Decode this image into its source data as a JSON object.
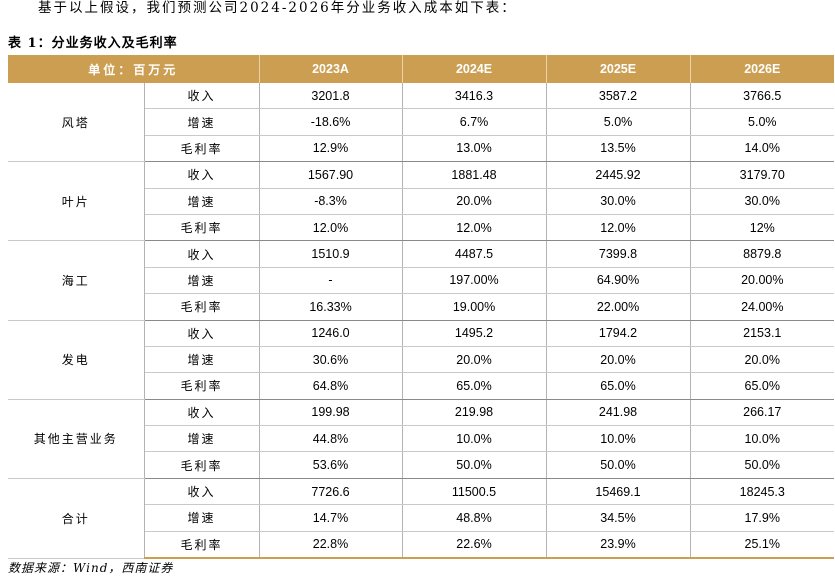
{
  "intro_text": "基于以上假设，我们预测公司2024-2026年分业务收入成本如下表：",
  "table_title": "表 1：分业务收入及毛利率",
  "header": {
    "unit_label": "单位：百万元",
    "years": [
      "2023A",
      "2024E",
      "2025E",
      "2026E"
    ]
  },
  "segments": [
    {
      "name": "风塔",
      "rows": [
        {
          "metric": "收入",
          "values": [
            "3201.8",
            "3416.3",
            "3587.2",
            "3766.5"
          ]
        },
        {
          "metric": "增速",
          "values": [
            "-18.6%",
            "6.7%",
            "5.0%",
            "5.0%"
          ]
        },
        {
          "metric": "毛利率",
          "values": [
            "12.9%",
            "13.0%",
            "13.5%",
            "14.0%"
          ]
        }
      ]
    },
    {
      "name": "叶片",
      "rows": [
        {
          "metric": "收入",
          "values": [
            "1567.90",
            "1881.48",
            "2445.92",
            "3179.70"
          ]
        },
        {
          "metric": "增速",
          "values": [
            "-8.3%",
            "20.0%",
            "30.0%",
            "30.0%"
          ]
        },
        {
          "metric": "毛利率",
          "values": [
            "12.0%",
            "12.0%",
            "12.0%",
            "12%"
          ]
        }
      ]
    },
    {
      "name": "海工",
      "rows": [
        {
          "metric": "收入",
          "values": [
            "1510.9",
            "4487.5",
            "7399.8",
            "8879.8"
          ]
        },
        {
          "metric": "增速",
          "values": [
            "-",
            "197.00%",
            "64.90%",
            "20.00%"
          ]
        },
        {
          "metric": "毛利率",
          "values": [
            "16.33%",
            "19.00%",
            "22.00%",
            "24.00%"
          ]
        }
      ]
    },
    {
      "name": "发电",
      "rows": [
        {
          "metric": "收入",
          "values": [
            "1246.0",
            "1495.2",
            "1794.2",
            "2153.1"
          ]
        },
        {
          "metric": "增速",
          "values": [
            "30.6%",
            "20.0%",
            "20.0%",
            "20.0%"
          ]
        },
        {
          "metric": "毛利率",
          "values": [
            "64.8%",
            "65.0%",
            "65.0%",
            "65.0%"
          ]
        }
      ]
    },
    {
      "name": "其他主营业务",
      "rows": [
        {
          "metric": "收入",
          "values": [
            "199.98",
            "219.98",
            "241.98",
            "266.17"
          ]
        },
        {
          "metric": "增速",
          "values": [
            "44.8%",
            "10.0%",
            "10.0%",
            "10.0%"
          ]
        },
        {
          "metric": "毛利率",
          "values": [
            "53.6%",
            "50.0%",
            "50.0%",
            "50.0%"
          ]
        }
      ]
    },
    {
      "name": "合计",
      "rows": [
        {
          "metric": "收入",
          "values": [
            "7726.6",
            "11500.5",
            "15469.1",
            "18245.3"
          ]
        },
        {
          "metric": "增速",
          "values": [
            "14.7%",
            "48.8%",
            "34.5%",
            "17.9%"
          ]
        },
        {
          "metric": "毛利率",
          "values": [
            "22.8%",
            "22.6%",
            "23.9%",
            "25.1%"
          ]
        }
      ]
    }
  ],
  "source_text": "数据来源：Wind，西南证券",
  "colors": {
    "header_bg": "#cc9e52",
    "header_text": "#ffffff"
  }
}
